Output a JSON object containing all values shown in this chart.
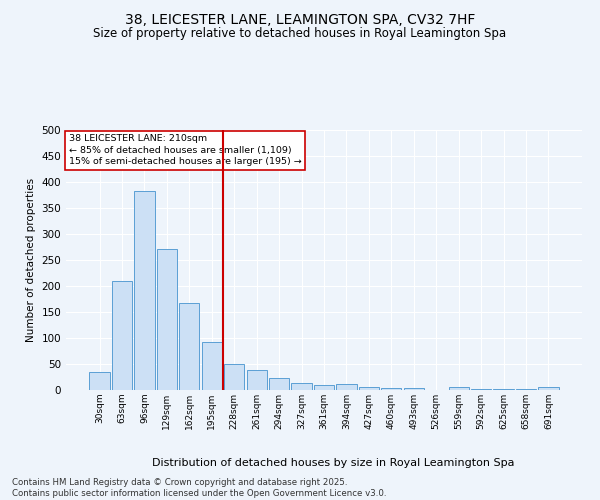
{
  "title": "38, LEICESTER LANE, LEAMINGTON SPA, CV32 7HF",
  "subtitle": "Size of property relative to detached houses in Royal Leamington Spa",
  "xlabel": "Distribution of detached houses by size in Royal Leamington Spa",
  "ylabel": "Number of detached properties",
  "footnote1": "Contains HM Land Registry data © Crown copyright and database right 2025.",
  "footnote2": "Contains public sector information licensed under the Open Government Licence v3.0.",
  "bar_labels": [
    "30sqm",
    "63sqm",
    "96sqm",
    "129sqm",
    "162sqm",
    "195sqm",
    "228sqm",
    "261sqm",
    "294sqm",
    "327sqm",
    "361sqm",
    "394sqm",
    "427sqm",
    "460sqm",
    "493sqm",
    "526sqm",
    "559sqm",
    "592sqm",
    "625sqm",
    "658sqm",
    "691sqm"
  ],
  "bar_values": [
    35,
    210,
    383,
    272,
    168,
    92,
    50,
    39,
    24,
    13,
    10,
    11,
    6,
    4,
    4,
    0,
    5,
    1,
    1,
    1,
    5
  ],
  "bar_color": "#cce0f5",
  "bar_edge_color": "#5a9fd4",
  "background_color": "#eef4fb",
  "grid_color": "#ffffff",
  "vline_color": "#cc0000",
  "annotation_line1": "38 LEICESTER LANE: 210sqm",
  "annotation_line2": "← 85% of detached houses are smaller (1,109)",
  "annotation_line3": "15% of semi-detached houses are larger (195) →",
  "annotation_box_color": "#cc0000",
  "annotation_fill": "#ffffff",
  "ylim": [
    0,
    500
  ],
  "yticks": [
    0,
    50,
    100,
    150,
    200,
    250,
    300,
    350,
    400,
    450,
    500
  ]
}
